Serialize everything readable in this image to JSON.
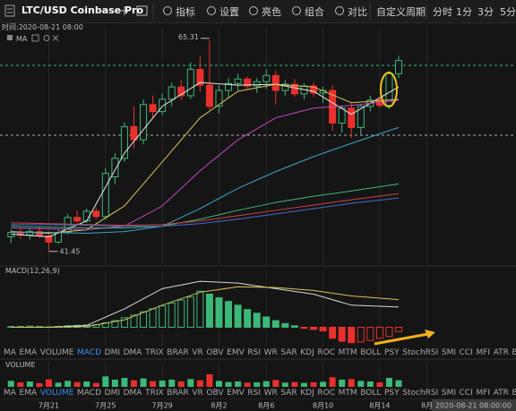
{
  "toolbar": {
    "symbol": "LTC/USD Coinbase Pro",
    "items": [
      "指标",
      "设置",
      "亮色",
      "组合",
      "对比"
    ],
    "period_menu": "自定义周期",
    "periods": [
      "分时",
      "1分",
      "3分",
      "5分"
    ]
  },
  "info": {
    "time": "时间:2020-08-21 08:00",
    "cursor_time": "2020-08-21 08:00:00"
  },
  "indicator_tabs": [
    "MA",
    "EMA",
    "VOLUME",
    "MACD",
    "DMI",
    "DMA",
    "TRIX",
    "BRAR",
    "VR",
    "OBV",
    "EMV",
    "RSI",
    "WR",
    "SAR",
    "KDJ",
    "ROC",
    "MTM",
    "BOLL",
    "PSY",
    "StochRSI",
    "SMI",
    "CCI",
    "MFI",
    "ATR",
    "BB"
  ],
  "time_axis": {
    "xlim": [
      -0.5,
      50
    ],
    "xticks": [
      {
        "value": 4,
        "label": "7月21"
      },
      {
        "value": 10,
        "label": "7月25"
      },
      {
        "value": 16,
        "label": "7月29"
      },
      {
        "value": 22,
        "label": "8月2"
      },
      {
        "value": 27,
        "label": "8月6"
      },
      {
        "value": 33,
        "label": "8月10"
      },
      {
        "value": 39,
        "label": "8月14"
      },
      {
        "value": 44,
        "label": "8月"
      }
    ]
  },
  "chart_data": [
    {
      "type": "candlestick",
      "title": "MA",
      "up_color": "#3cb878",
      "down_color": "#e8302c",
      "ylim": [
        39.9,
        66.0
      ],
      "candles": [
        [
          43.0,
          43.8,
          42.3,
          43.5
        ],
        [
          43.5,
          44.0,
          42.8,
          43.2
        ],
        [
          43.2,
          43.9,
          42.7,
          43.6
        ],
        [
          43.6,
          44.2,
          42.9,
          43.1
        ],
        [
          43.1,
          43.6,
          41.45,
          42.4
        ],
        [
          42.4,
          43.8,
          42.2,
          43.5
        ],
        [
          43.5,
          45.6,
          43.3,
          45.2
        ],
        [
          45.2,
          46.0,
          44.5,
          44.8
        ],
        [
          44.8,
          46.2,
          44.6,
          45.9
        ],
        [
          45.9,
          46.3,
          45.0,
          45.3
        ],
        [
          45.3,
          50.8,
          45.0,
          50.2
        ],
        [
          49.8,
          52.5,
          49.0,
          51.9
        ],
        [
          51.9,
          56.0,
          51.5,
          55.5
        ],
        [
          55.5,
          57.8,
          53.0,
          54.0
        ],
        [
          54.0,
          58.6,
          53.5,
          58.0
        ],
        [
          58.0,
          59.0,
          56.5,
          57.2
        ],
        [
          57.2,
          59.2,
          56.8,
          58.6
        ],
        [
          58.6,
          60.5,
          57.8,
          60.0
        ],
        [
          60.0,
          60.8,
          58.5,
          59.0
        ],
        [
          59.0,
          62.8,
          58.6,
          62.0
        ],
        [
          62.0,
          63.5,
          59.5,
          60.2
        ],
        [
          60.2,
          65.31,
          57.4,
          57.8
        ],
        [
          57.8,
          60.2,
          57.0,
          59.6
        ],
        [
          59.6,
          61.0,
          58.8,
          60.4
        ],
        [
          60.4,
          61.5,
          59.5,
          60.9
        ],
        [
          60.9,
          61.2,
          59.8,
          60.1
        ],
        [
          60.1,
          61.0,
          59.3,
          60.6
        ],
        [
          60.6,
          62.0,
          59.8,
          61.3
        ],
        [
          61.3,
          61.8,
          58.0,
          59.6
        ],
        [
          59.6,
          60.8,
          59.0,
          60.3
        ],
        [
          60.3,
          60.9,
          58.9,
          59.2
        ],
        [
          59.2,
          60.4,
          58.6,
          60.1
        ],
        [
          60.1,
          60.5,
          58.9,
          59.3
        ],
        [
          59.3,
          60.0,
          58.2,
          59.6
        ],
        [
          59.6,
          60.2,
          55.0,
          55.9
        ],
        [
          55.9,
          57.9,
          54.8,
          57.6
        ],
        [
          57.6,
          58.3,
          54.2,
          55.4
        ],
        [
          55.4,
          58.0,
          54.6,
          57.8
        ],
        [
          57.8,
          59.0,
          57.2,
          58.5
        ],
        [
          58.5,
          58.9,
          57.6,
          57.9
        ],
        [
          57.9,
          61.8,
          57.5,
          61.5
        ],
        [
          61.5,
          63.5,
          61.0,
          63.0
        ]
      ],
      "ma_x": [
        0,
        4,
        8,
        12,
        16,
        20,
        24,
        28,
        32,
        36,
        41
      ],
      "series": [
        {
          "color": "#e8e8e8",
          "values": [
            43.3,
            43.0,
            44.8,
            52.5,
            57.8,
            60.5,
            60.2,
            60.3,
            59.5,
            56.9,
            60.0
          ]
        },
        {
          "color": "#d6c45a",
          "values": [
            43.6,
            43.4,
            43.8,
            46.5,
            51.5,
            56.5,
            59.5,
            60.3,
            60.0,
            58.2,
            58.6
          ]
        },
        {
          "color": "#c846c8",
          "values": [
            44.0,
            43.9,
            43.8,
            44.2,
            46.5,
            50.5,
            54.0,
            56.5,
            57.6,
            57.9,
            58.5
          ]
        },
        {
          "color": "#3aa6c8",
          "values": [
            43.5,
            43.5,
            43.4,
            43.6,
            44.2,
            46.2,
            48.5,
            50.4,
            52.1,
            53.6,
            55.4
          ]
        },
        {
          "color": "#3cb878",
          "values": [
            44.2,
            44.1,
            44.0,
            44.0,
            44.2,
            45.0,
            46.0,
            46.9,
            47.6,
            48.2,
            49.0
          ]
        },
        {
          "color": "#d04040",
          "values": [
            44.6,
            44.5,
            44.4,
            44.3,
            44.4,
            44.8,
            45.4,
            46.0,
            46.6,
            47.2,
            47.9
          ]
        },
        {
          "color": "#4a6ad0",
          "values": [
            44.4,
            44.4,
            44.3,
            44.2,
            44.2,
            44.5,
            45.0,
            45.6,
            46.2,
            46.8,
            47.4
          ]
        }
      ]
    },
    {
      "type": "macd",
      "title": "MACD(12,26,9)",
      "active_tab": 3,
      "up_color": "#3cb878",
      "down_color": "#e8302c",
      "ylim": [
        -0.5,
        1.35
      ],
      "values": [
        0.02,
        0.02,
        0.03,
        0.02,
        0.01,
        0.02,
        0.04,
        0.05,
        0.06,
        0.07,
        0.12,
        0.18,
        0.26,
        0.33,
        0.42,
        0.5,
        0.58,
        0.66,
        0.74,
        0.82,
        0.98,
        0.9,
        0.8,
        0.7,
        0.6,
        0.48,
        0.38,
        0.28,
        0.18,
        0.1,
        0.04,
        -0.03,
        -0.06,
        -0.1,
        -0.3,
        -0.38,
        -0.42,
        -0.4,
        -0.36,
        -0.3,
        -0.25,
        -0.12
      ],
      "line_x": [
        0,
        4,
        8,
        12,
        16,
        20,
        24,
        28,
        32,
        36,
        41
      ],
      "series": [
        {
          "color": "#d8d8d8",
          "values": [
            0.0,
            0.0,
            0.05,
            0.5,
            1.05,
            1.25,
            1.2,
            1.05,
            0.9,
            0.6,
            0.55
          ]
        },
        {
          "color": "#d6c45a",
          "values": [
            0.0,
            0.0,
            0.02,
            0.2,
            0.6,
            0.95,
            1.1,
            1.08,
            1.0,
            0.85,
            0.75
          ]
        }
      ]
    },
    {
      "type": "bar",
      "title": "VOLUME",
      "active_tab": 2,
      "up_color": "#3cb878",
      "down_color": "#e8302c",
      "ylim": [
        0,
        6
      ],
      "values": [
        2,
        1.5,
        1.8,
        1.2,
        2.5,
        1.4,
        2.0,
        1.6,
        1.8,
        1.3,
        3.5,
        2.4,
        3.0,
        2.2,
        2.8,
        1.9,
        2.1,
        2.4,
        1.8,
        2.6,
        2.2,
        4.2,
        2.0,
        1.6,
        1.8,
        1.4,
        1.5,
        1.9,
        2.3,
        1.4,
        1.6,
        1.3,
        1.5,
        1.7,
        3.2,
        2.4,
        2.6,
        2.0,
        1.8,
        1.5,
        3.0,
        2.2
      ]
    }
  ]
}
